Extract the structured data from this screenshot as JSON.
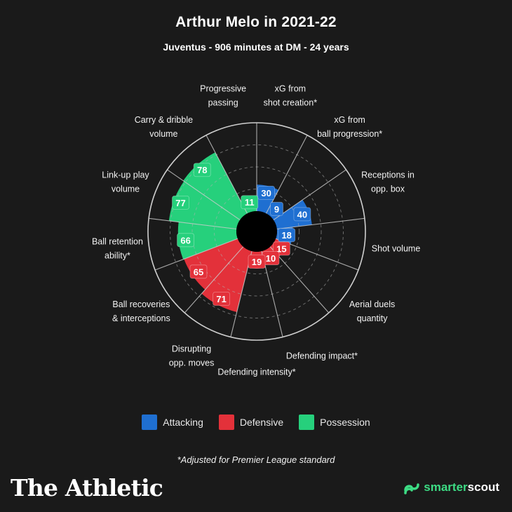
{
  "header": {
    "title": "Arthur Melo in 2021-22",
    "subtitle": "Juventus - 906 minutes at DM - 24 years"
  },
  "colors": {
    "attacking": "#1f6fd1",
    "defensive": "#e3313a",
    "possession": "#26d07c",
    "background": "#1a1a1a"
  },
  "chart_data": {
    "type": "polar-area",
    "title": "Arthur Melo in 2021-22",
    "scale_max": 100,
    "categories": [
      {
        "label": "xG from shot creation*",
        "value": 30,
        "group": "Attacking"
      },
      {
        "label": "xG from ball progression*",
        "value": 9,
        "group": "Attacking"
      },
      {
        "label": "Receptions in opp. box",
        "value": 40,
        "group": "Attacking"
      },
      {
        "label": "Shot volume",
        "value": 18,
        "group": "Attacking"
      },
      {
        "label": "Aerial duels quantity",
        "value": 15,
        "group": "Defensive"
      },
      {
        "label": "Defending impact*",
        "value": 10,
        "group": "Defensive"
      },
      {
        "label": "Defending intensity*",
        "value": 19,
        "group": "Defensive"
      },
      {
        "label": "Disrupting opp. moves",
        "value": 71,
        "group": "Defensive"
      },
      {
        "label": "Ball recoveries & interceptions",
        "value": 65,
        "group": "Defensive"
      },
      {
        "label": "Ball retention ability*",
        "value": 66,
        "group": "Possession"
      },
      {
        "label": "Link-up play volume",
        "value": 77,
        "group": "Possession"
      },
      {
        "label": "Carry & dribble volume",
        "value": 78,
        "group": "Possession"
      },
      {
        "label": "Progressive passing",
        "value": 11,
        "group": "Possession"
      }
    ],
    "axis_labels": [
      [
        "xG from",
        "shot creation*"
      ],
      [
        "xG from",
        "ball progression*"
      ],
      [
        "Receptions in",
        "opp. box"
      ],
      [
        "Shot volume"
      ],
      [
        "Aerial duels",
        "quantity"
      ],
      [
        "Defending impact*"
      ],
      [
        "Defending intensity*"
      ],
      [
        "Disrupting",
        "opp. moves"
      ],
      [
        "Ball recoveries",
        "& interceptions"
      ],
      [
        "Ball retention",
        "ability*"
      ],
      [
        "Link-up play",
        "volume"
      ],
      [
        "Carry & dribble",
        "volume"
      ],
      [
        "Progressive",
        "passing"
      ]
    ]
  },
  "legend": [
    {
      "label": "Attacking",
      "color": "#1f6fd1"
    },
    {
      "label": "Defensive",
      "color": "#e3313a"
    },
    {
      "label": "Possession",
      "color": "#26d07c"
    }
  ],
  "footnote": "*Adjusted for Premier League standard",
  "brand": "The Athletic",
  "source": {
    "part1": "smarter",
    "part2": "scout"
  }
}
